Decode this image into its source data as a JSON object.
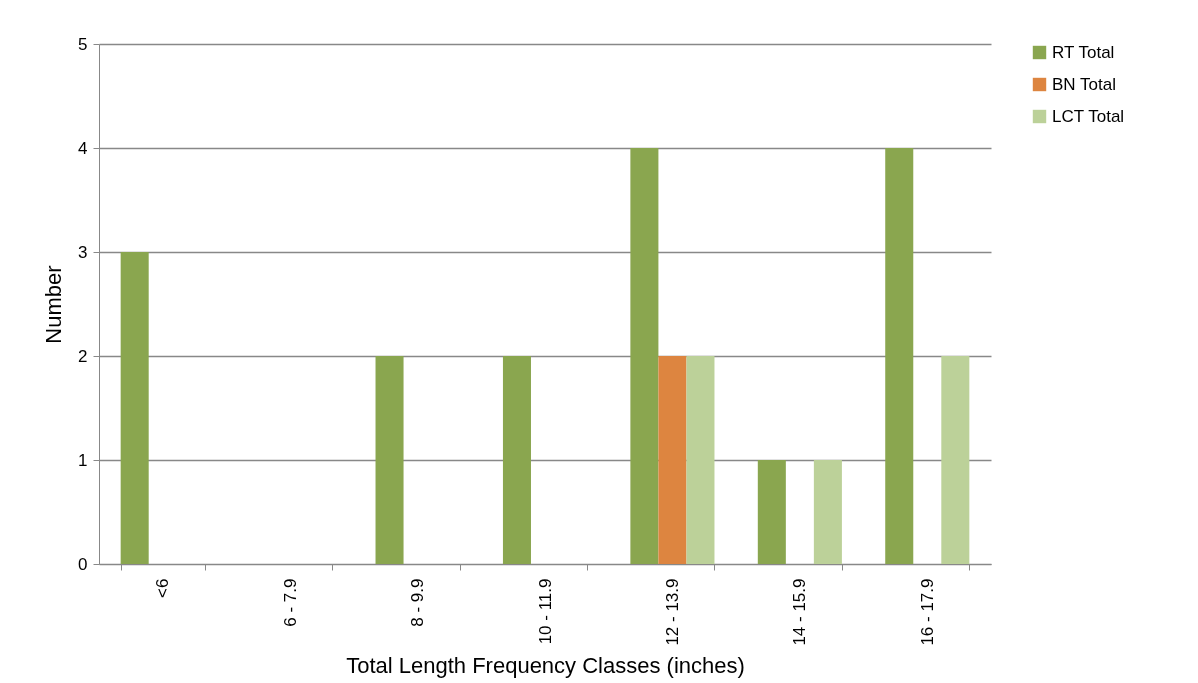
{
  "chart_data": {
    "type": "bar",
    "xlabel": "Total Length Frequency Classes (inches)",
    "ylabel": "Number",
    "categories": [
      "<6",
      "6 - 7.9",
      "8 - 9.9",
      "10 - 11.9",
      "12 - 13.9",
      "14 - 15.9",
      "16 - 17.9"
    ],
    "series": [
      {
        "name": "RT Total",
        "color": "#8aa64f",
        "values": [
          3,
          0,
          2,
          2,
          4,
          1,
          4
        ]
      },
      {
        "name": "BN Total",
        "color": "#dd8540",
        "values": [
          0,
          0,
          0,
          0,
          2,
          0,
          0
        ]
      },
      {
        "name": "LCT Total",
        "color": "#bcd199",
        "values": [
          0,
          0,
          0,
          0,
          2,
          1,
          2
        ]
      }
    ],
    "ylim": [
      0,
      5
    ],
    "yticks": [
      0,
      1,
      2,
      3,
      4,
      5
    ],
    "grid": "y",
    "legend": "right"
  }
}
